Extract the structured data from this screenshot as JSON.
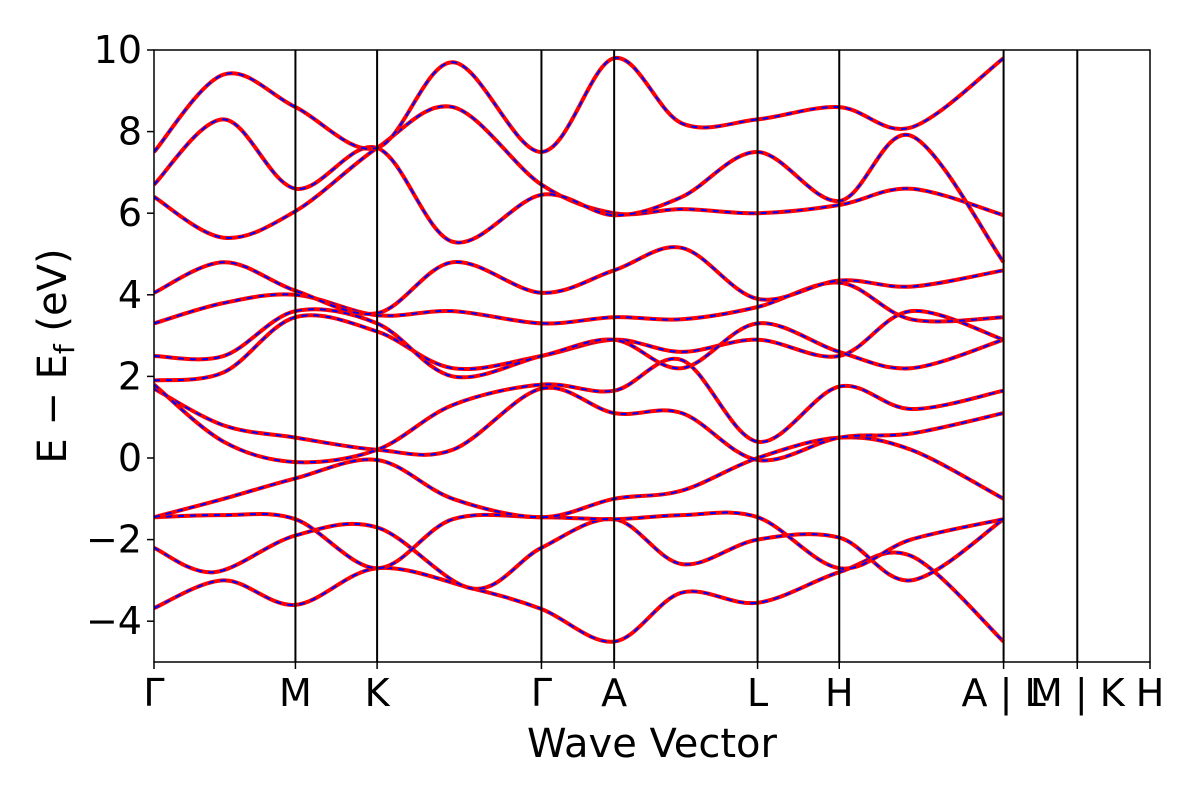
{
  "chart_data": {
    "type": "line",
    "title": "",
    "xlabel": "Wave Vector",
    "ylabel": "E − E",
    "ylabel_sub": "f",
    "ylabel_unit": " (eV)",
    "ylim": [
      -5,
      10
    ],
    "yticks": [
      -4,
      -2,
      0,
      2,
      4,
      6,
      8,
      10
    ],
    "ytick_labels": [
      "−4",
      "−2",
      "0",
      "2",
      "4",
      "6",
      "8",
      "10"
    ],
    "x_range": [
      0,
      1
    ],
    "kpoints": [
      {
        "x": 0.0,
        "label": "Γ"
      },
      {
        "x": 0.142,
        "label": "M"
      },
      {
        "x": 0.224,
        "label": "K"
      },
      {
        "x": 0.389,
        "label": "Γ"
      },
      {
        "x": 0.462,
        "label": "A"
      },
      {
        "x": 0.606,
        "label": "L"
      },
      {
        "x": 0.688,
        "label": "H"
      },
      {
        "x": 0.853,
        "label": "A | L"
      },
      {
        "x": 0.927,
        "label": "M | K"
      },
      {
        "x": 1.0,
        "label": "H"
      }
    ],
    "breaks": [
      0.853,
      0.927
    ],
    "grid": false,
    "series": [
      {
        "style": "solid",
        "color": "#ff0000",
        "width": 4
      },
      {
        "style": "dashed",
        "color": "#0000ff",
        "width": 2
      }
    ],
    "bands": [
      [
        [
          0,
          -3.68
        ],
        [
          0.07,
          -3.0
        ],
        [
          0.142,
          -3.6
        ],
        [
          0.224,
          -2.7
        ],
        [
          0.32,
          -3.2
        ],
        [
          0.389,
          -3.7
        ],
        [
          0.462,
          -4.5
        ],
        [
          0.53,
          -3.3
        ],
        [
          0.606,
          -3.55
        ],
        [
          0.688,
          -2.8
        ],
        [
          0.76,
          -2.4
        ],
        [
          0.853,
          -4.5
        ]
      ],
      [
        [
          0,
          -2.2
        ],
        [
          0.06,
          -2.8
        ],
        [
          0.142,
          -1.9
        ],
        [
          0.224,
          -1.7
        ],
        [
          0.32,
          -3.2
        ],
        [
          0.389,
          -2.2
        ],
        [
          0.462,
          -1.5
        ],
        [
          0.53,
          -2.6
        ],
        [
          0.606,
          -2.0
        ],
        [
          0.688,
          -1.95
        ],
        [
          0.76,
          -3.0
        ],
        [
          0.853,
          -1.5
        ]
      ],
      [
        [
          0,
          -1.45
        ],
        [
          0.07,
          -1.4
        ],
        [
          0.142,
          -1.5
        ],
        [
          0.224,
          -2.7
        ],
        [
          0.3,
          -1.5
        ],
        [
          0.389,
          -1.45
        ],
        [
          0.462,
          -1.5
        ],
        [
          0.53,
          -1.4
        ],
        [
          0.606,
          -1.45
        ],
        [
          0.688,
          -2.7
        ],
        [
          0.76,
          -2.0
        ],
        [
          0.853,
          -1.5
        ]
      ],
      [
        [
          0,
          -1.45
        ],
        [
          0.07,
          -1.0
        ],
        [
          0.142,
          -0.5
        ],
        [
          0.224,
          -0.05
        ],
        [
          0.3,
          -1.0
        ],
        [
          0.389,
          -1.45
        ],
        [
          0.462,
          -1.0
        ],
        [
          0.53,
          -0.8
        ],
        [
          0.606,
          0.0
        ],
        [
          0.688,
          0.5
        ],
        [
          0.76,
          0.2
        ],
        [
          0.853,
          -1.0
        ]
      ],
      [
        [
          0,
          1.7
        ],
        [
          0.07,
          0.8
        ],
        [
          0.142,
          0.5
        ],
        [
          0.224,
          0.2
        ],
        [
          0.3,
          0.2
        ],
        [
          0.389,
          1.7
        ],
        [
          0.462,
          1.1
        ],
        [
          0.53,
          1.1
        ],
        [
          0.606,
          -0.05
        ],
        [
          0.688,
          0.5
        ],
        [
          0.76,
          0.6
        ],
        [
          0.853,
          1.1
        ]
      ],
      [
        [
          0,
          1.8
        ],
        [
          0.07,
          0.4
        ],
        [
          0.142,
          -0.1
        ],
        [
          0.224,
          0.2
        ],
        [
          0.3,
          1.3
        ],
        [
          0.389,
          1.8
        ],
        [
          0.462,
          1.65
        ],
        [
          0.53,
          2.4
        ],
        [
          0.606,
          0.4
        ],
        [
          0.688,
          1.75
        ],
        [
          0.76,
          1.2
        ],
        [
          0.853,
          1.65
        ]
      ],
      [
        [
          0,
          1.9
        ],
        [
          0.07,
          2.1
        ],
        [
          0.142,
          3.45
        ],
        [
          0.224,
          3.1
        ],
        [
          0.3,
          2.2
        ],
        [
          0.389,
          2.5
        ],
        [
          0.462,
          2.9
        ],
        [
          0.53,
          2.6
        ],
        [
          0.606,
          2.9
        ],
        [
          0.688,
          2.5
        ],
        [
          0.76,
          3.6
        ],
        [
          0.853,
          2.9
        ]
      ],
      [
        [
          0,
          2.5
        ],
        [
          0.07,
          2.5
        ],
        [
          0.142,
          3.6
        ],
        [
          0.224,
          3.3
        ],
        [
          0.3,
          2.0
        ],
        [
          0.389,
          2.5
        ],
        [
          0.462,
          2.9
        ],
        [
          0.53,
          2.2
        ],
        [
          0.606,
          3.3
        ],
        [
          0.688,
          2.6
        ],
        [
          0.76,
          2.2
        ],
        [
          0.853,
          2.9
        ]
      ],
      [
        [
          0,
          3.3
        ],
        [
          0.07,
          3.8
        ],
        [
          0.142,
          4.0
        ],
        [
          0.224,
          3.5
        ],
        [
          0.3,
          3.6
        ],
        [
          0.389,
          3.3
        ],
        [
          0.462,
          3.45
        ],
        [
          0.53,
          3.4
        ],
        [
          0.606,
          3.7
        ],
        [
          0.688,
          4.3
        ],
        [
          0.76,
          3.4
        ],
        [
          0.853,
          3.45
        ]
      ],
      [
        [
          0,
          4.05
        ],
        [
          0.07,
          4.8
        ],
        [
          0.142,
          4.1
        ],
        [
          0.224,
          3.55
        ],
        [
          0.3,
          4.8
        ],
        [
          0.389,
          4.05
        ],
        [
          0.462,
          4.6
        ],
        [
          0.53,
          5.15
        ],
        [
          0.606,
          3.9
        ],
        [
          0.688,
          4.35
        ],
        [
          0.76,
          4.2
        ],
        [
          0.853,
          4.6
        ]
      ],
      [
        [
          0,
          6.4
        ],
        [
          0.07,
          5.4
        ],
        [
          0.142,
          6.05
        ],
        [
          0.224,
          7.6
        ],
        [
          0.3,
          8.6
        ],
        [
          0.389,
          6.7
        ],
        [
          0.462,
          6.0
        ],
        [
          0.53,
          6.1
        ],
        [
          0.606,
          6.0
        ],
        [
          0.688,
          6.2
        ],
        [
          0.76,
          6.6
        ],
        [
          0.853,
          5.95
        ]
      ],
      [
        [
          0,
          6.7
        ],
        [
          0.07,
          8.3
        ],
        [
          0.142,
          6.6
        ],
        [
          0.224,
          7.6
        ],
        [
          0.3,
          5.3
        ],
        [
          0.389,
          6.45
        ],
        [
          0.462,
          5.95
        ],
        [
          0.53,
          6.4
        ],
        [
          0.606,
          7.5
        ],
        [
          0.688,
          6.3
        ],
        [
          0.76,
          7.9
        ],
        [
          0.853,
          4.8
        ]
      ],
      [
        [
          0,
          7.5
        ],
        [
          0.07,
          9.4
        ],
        [
          0.142,
          8.6
        ],
        [
          0.224,
          7.6
        ],
        [
          0.3,
          9.7
        ],
        [
          0.389,
          7.5
        ],
        [
          0.462,
          9.8
        ],
        [
          0.53,
          8.2
        ],
        [
          0.606,
          8.3
        ],
        [
          0.688,
          8.6
        ],
        [
          0.76,
          8.1
        ],
        [
          0.853,
          9.8
        ]
      ]
    ]
  }
}
